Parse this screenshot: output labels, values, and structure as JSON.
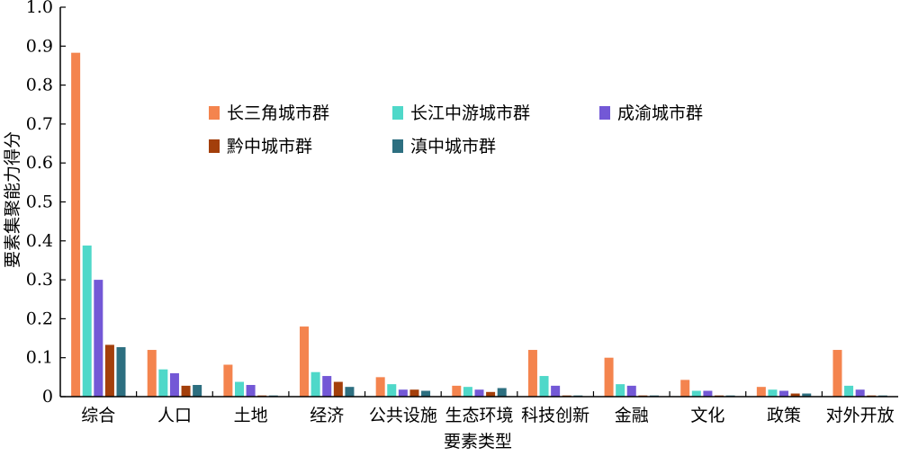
{
  "colors": {
    "series": [
      "#F4844E",
      "#4FD8C9",
      "#7358D6",
      "#A33F0B",
      "#2D6F80"
    ],
    "axis": "#000000",
    "background": "#ffffff"
  },
  "chart_data": {
    "type": "bar",
    "title": "",
    "xlabel": "要素类型",
    "ylabel": "要素集聚能力得分",
    "ylim": [
      0,
      1.0
    ],
    "yticks": [
      "0",
      "0.1",
      "0.2",
      "0.3",
      "0.4",
      "0.5",
      "0.6",
      "0.7",
      "0.8",
      "0.9",
      "1.0"
    ],
    "grid": false,
    "legend_position": "top-center",
    "categories": [
      "综合",
      "人口",
      "土地",
      "经济",
      "公共设施",
      "生态环境",
      "科技创新",
      "金融",
      "文化",
      "政策",
      "对外开放"
    ],
    "series": [
      {
        "name": "长三角城市群",
        "values": [
          0.883,
          0.12,
          0.082,
          0.18,
          0.05,
          0.028,
          0.12,
          0.1,
          0.043,
          0.025,
          0.12
        ]
      },
      {
        "name": "长江中游城市群",
        "values": [
          0.388,
          0.07,
          0.038,
          0.063,
          0.032,
          0.025,
          0.053,
          0.032,
          0.015,
          0.018,
          0.028
        ]
      },
      {
        "name": "成渝城市群",
        "values": [
          0.3,
          0.06,
          0.03,
          0.053,
          0.018,
          0.018,
          0.028,
          0.028,
          0.015,
          0.015,
          0.018
        ]
      },
      {
        "name": "黔中城市群",
        "values": [
          0.133,
          0.028,
          0.003,
          0.038,
          0.018,
          0.012,
          0.003,
          0.003,
          0.003,
          0.008,
          0.003
        ]
      },
      {
        "name": "滇中城市群",
        "values": [
          0.127,
          0.03,
          0.003,
          0.025,
          0.015,
          0.022,
          0.003,
          0.003,
          0.003,
          0.008,
          0.003
        ]
      }
    ]
  }
}
